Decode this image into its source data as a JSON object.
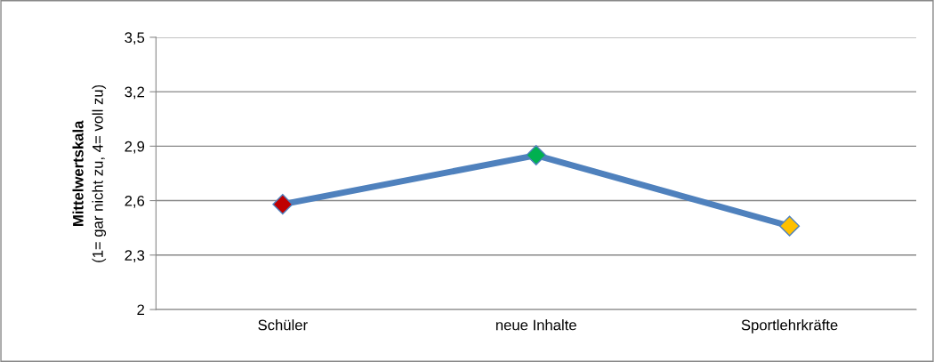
{
  "chart_data": {
    "type": "line",
    "categories": [
      "Schüler",
      "neue Inhalte",
      "Sportlehrkräfte"
    ],
    "series": [
      {
        "color": "#4f81bd",
        "colors": [
          "#c00000",
          "#00b050",
          "#ffc000"
        ],
        "values": [
          2.58,
          2.85,
          2.46
        ]
      }
    ],
    "ylabel": "Mittelwertskala\n(1= gar nicht zu, 4= voll zu)",
    "ylim": [
      2,
      3.5
    ],
    "yticks": [
      {
        "value": 2,
        "label": "2"
      },
      {
        "value": 2.3,
        "label": "2,3"
      },
      {
        "value": 2.6,
        "label": "2,6"
      },
      {
        "value": 2.9,
        "label": "2,9"
      },
      {
        "value": 3.2,
        "label": "3,2"
      },
      {
        "value": 3.5,
        "label": "3,5"
      }
    ],
    "grid": "y",
    "marker": "diamond",
    "line_style": "solid",
    "legend": false
  }
}
